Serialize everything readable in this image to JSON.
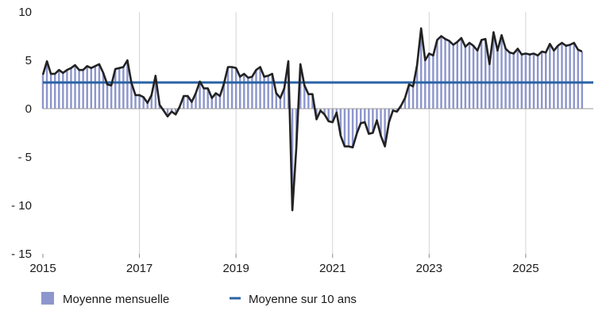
{
  "chart_data": {
    "type": "bar+line",
    "title": "",
    "xlabel": "",
    "ylabel": "",
    "ylim": [
      -15,
      10
    ],
    "yticks": [
      10,
      5,
      0,
      -5,
      -10,
      -15
    ],
    "ytick_labels": [
      "10",
      "5",
      "0",
      "- 5",
      "- 10",
      "- 15"
    ],
    "xlim": [
      2015,
      2026.4
    ],
    "xticks": [
      2015,
      2017,
      2019,
      2021,
      2023,
      2025
    ],
    "xtick_labels": [
      "2015",
      "2017",
      "2019",
      "2021",
      "2023",
      "2025"
    ],
    "grid": "vertical",
    "legend_position": "bottom",
    "colors": {
      "bars": "#8d96cc",
      "line": "#222222",
      "average": "#2a63a6"
    },
    "series": [
      {
        "name": "Moyenne mensuelle",
        "type": "bar+line",
        "start": "2015-01",
        "frequency": "monthly",
        "values": [
          3.5,
          4.9,
          3.6,
          3.6,
          4.0,
          3.7,
          4.0,
          4.2,
          4.5,
          4.0,
          4.0,
          4.4,
          4.2,
          4.4,
          4.6,
          3.7,
          2.5,
          2.4,
          4.1,
          4.2,
          4.3,
          5.0,
          2.7,
          1.4,
          1.4,
          1.2,
          0.6,
          1.4,
          3.4,
          0.4,
          -0.2,
          -0.8,
          -0.3,
          -0.6,
          0.2,
          1.3,
          1.3,
          0.7,
          1.6,
          2.8,
          2.1,
          2.1,
          1.1,
          1.6,
          1.3,
          2.6,
          4.3,
          4.3,
          4.2,
          3.3,
          3.6,
          3.2,
          3.3,
          4.0,
          4.3,
          3.3,
          3.4,
          3.6,
          1.6,
          1.1,
          2.1,
          4.9,
          -10.5,
          -4.0,
          4.6,
          2.4,
          1.5,
          1.5,
          -1.1,
          -0.2,
          -0.6,
          -1.3,
          -1.4,
          -0.4,
          -2.8,
          -3.9,
          -3.9,
          -4.0,
          -2.6,
          -1.5,
          -1.4,
          -2.6,
          -2.5,
          -1.2,
          -2.8,
          -3.9,
          -1.4,
          -0.2,
          -0.3,
          0.3,
          1.1,
          2.5,
          2.3,
          4.5,
          8.3,
          5.0,
          5.7,
          5.5,
          7.1,
          7.5,
          7.2,
          7.0,
          6.6,
          6.9,
          7.3,
          6.4,
          6.8,
          6.5,
          6.0,
          7.1,
          7.2,
          4.6,
          7.9,
          6.0,
          7.6,
          6.2,
          5.8,
          5.7,
          6.2,
          5.6,
          5.7,
          5.6,
          5.7,
          5.5,
          5.9,
          5.8,
          6.7,
          6.0,
          6.5,
          6.8,
          6.5,
          6.6,
          6.8,
          6.1,
          5.9
        ]
      },
      {
        "name": "Moyenne sur 10 ans",
        "type": "line",
        "values": [
          2.7
        ]
      }
    ]
  },
  "legend": {
    "items": [
      {
        "label": "Moyenne mensuelle"
      },
      {
        "label": "Moyenne sur 10 ans"
      }
    ]
  }
}
